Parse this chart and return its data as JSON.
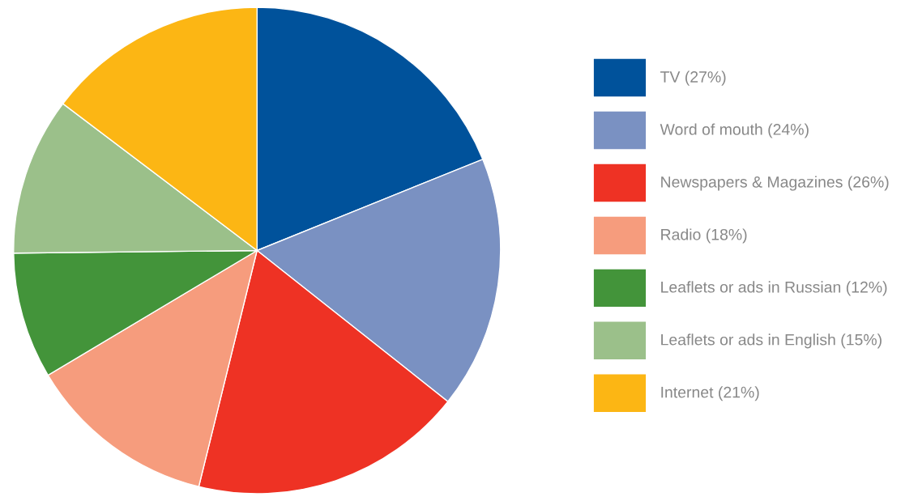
{
  "chart_data": {
    "type": "pie",
    "categories": [
      "TV (27%)",
      "Word of mouth (24%)",
      "Newspapers & Magazines (26%)",
      "Radio (18%)",
      "Leaflets or ads in Russian (12%)",
      "Leaflets or ads in English (15%)",
      "Internet (21%)"
    ],
    "values": [
      27,
      24,
      26,
      18,
      12,
      15,
      21
    ],
    "colors": [
      "#00529b",
      "#7a91c2",
      "#ee3224",
      "#f69c7d",
      "#43943a",
      "#9bc08a",
      "#fcb614"
    ],
    "legend": "right"
  }
}
